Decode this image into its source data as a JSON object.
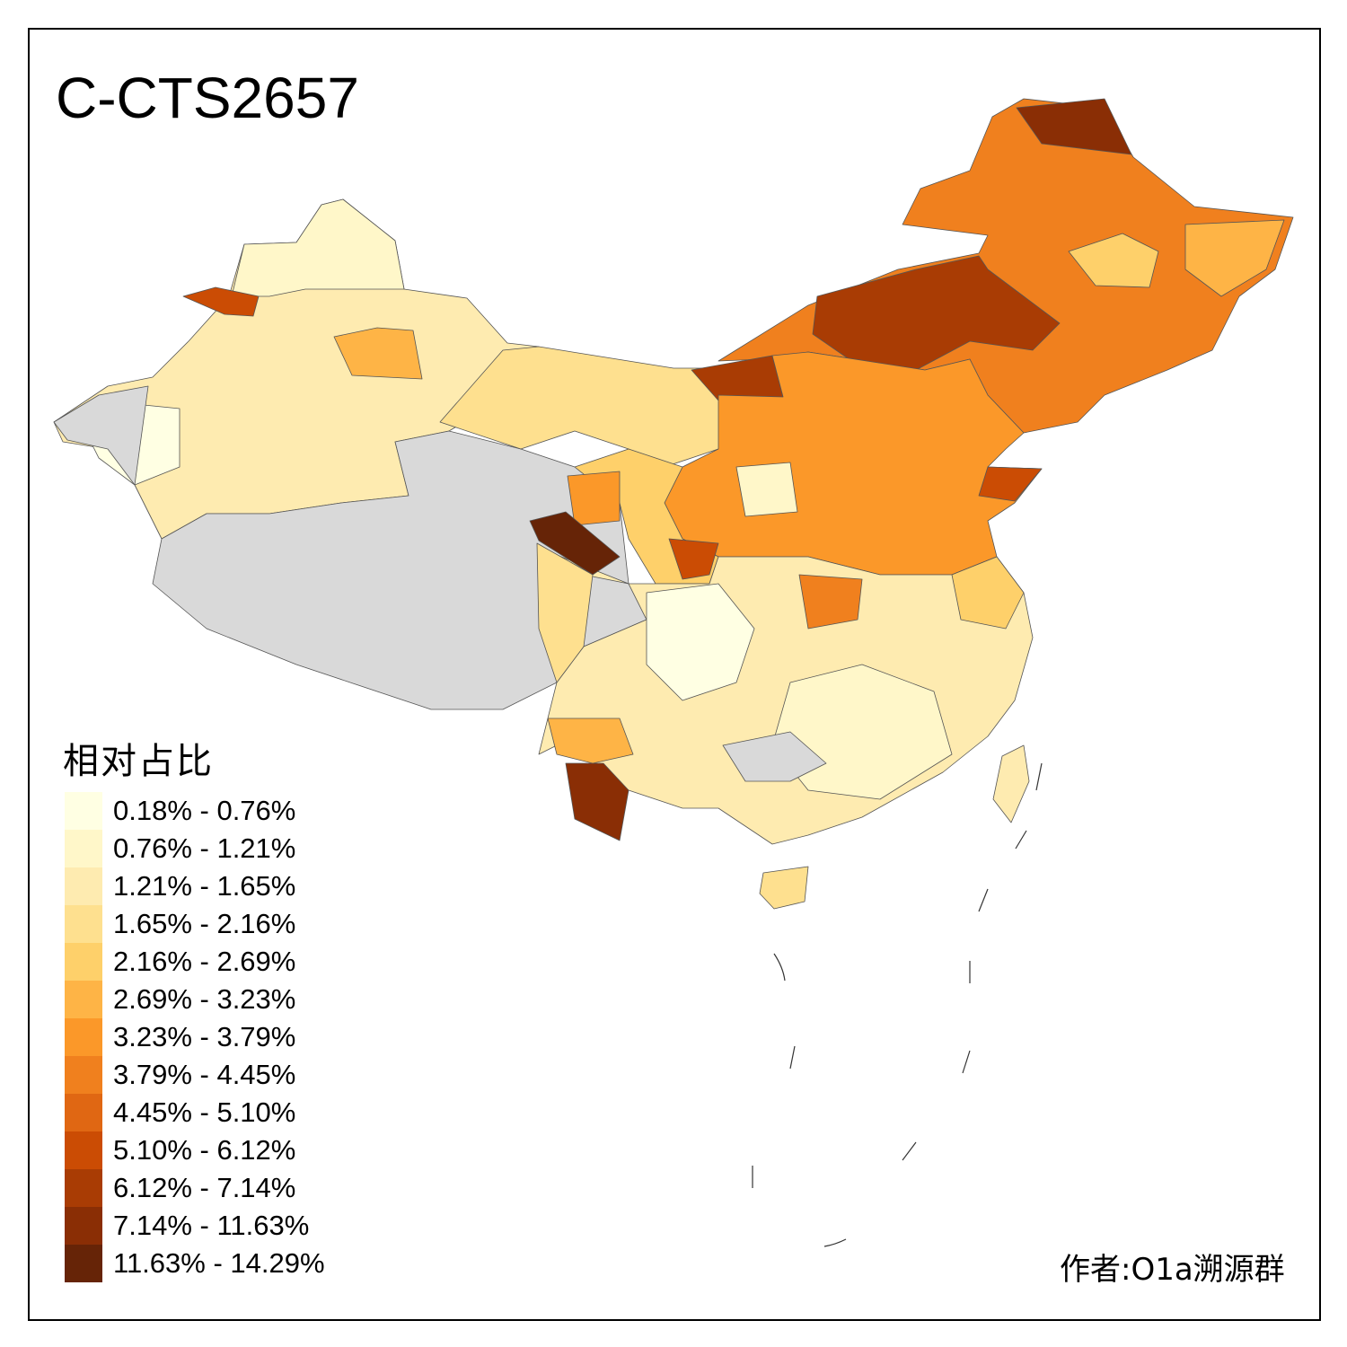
{
  "title": "C-CTS2657",
  "legend": {
    "title": "相对占比",
    "items": [
      {
        "label": "0.18% - 0.76%",
        "color": "#FFFFE3"
      },
      {
        "label": "0.76% - 1.21%",
        "color": "#FFF7C9"
      },
      {
        "label": "1.21% - 1.65%",
        "color": "#FEEBB0"
      },
      {
        "label": "1.65% - 2.16%",
        "color": "#FEE08F"
      },
      {
        "label": "2.16% - 2.69%",
        "color": "#FED06A"
      },
      {
        "label": "2.69% - 3.23%",
        "color": "#FEB446"
      },
      {
        "label": "3.23% - 3.79%",
        "color": "#FB9829"
      },
      {
        "label": "3.79% - 4.45%",
        "color": "#F0801E"
      },
      {
        "label": "4.45% - 5.10%",
        "color": "#E06713"
      },
      {
        "label": "5.10% - 6.12%",
        "color": "#CB4C04"
      },
      {
        "label": "6.12% - 7.14%",
        "color": "#A93C04"
      },
      {
        "label": "7.14% - 11.63%",
        "color": "#8A2E05"
      },
      {
        "label": "11.63% - 14.29%",
        "color": "#662407"
      }
    ]
  },
  "no_data_color": "#D9D9D9",
  "author": "作者:O1a溯源群"
}
